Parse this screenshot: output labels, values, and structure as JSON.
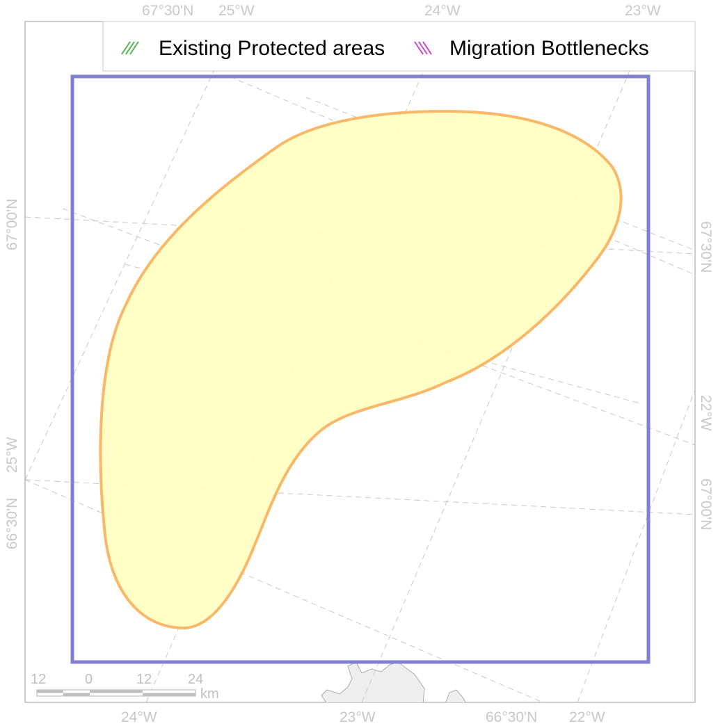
{
  "legend": {
    "items": [
      {
        "label": "Existing Protected areas",
        "color": "#4cb84c",
        "pattern": "diagonal-hatch-forward"
      },
      {
        "label": "Migration Bottlenecks",
        "color": "#cc44cc",
        "pattern": "diagonal-hatch-backward"
      }
    ]
  },
  "graticule": {
    "top": [
      "67°30'N",
      "25°W",
      "24°W",
      "23°W"
    ],
    "bottom": [
      "24°W",
      "23°W",
      "66°30'N",
      "22°W"
    ],
    "left": [
      "67°00'N",
      "25°W",
      "66°30'N"
    ],
    "right": [
      "67°30'N",
      "22°W",
      "67°00'N"
    ]
  },
  "scalebar": {
    "ticks": [
      "12",
      "0",
      "12",
      "24"
    ],
    "unit": "km"
  },
  "colors": {
    "study_area_outline": "#8080d0",
    "region_fill": "#ffffc0",
    "region_outline": "#f8b868",
    "graticule": "#c8c8c8",
    "land_fill": "#eeeeee",
    "land_outline": "#aaaaaa"
  }
}
